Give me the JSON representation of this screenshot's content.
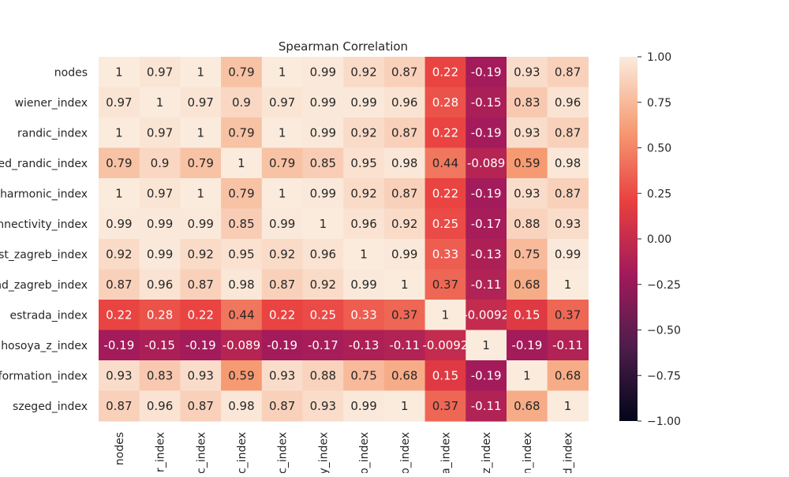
{
  "chart_data": {
    "type": "heatmap",
    "title": "Spearman Correlation",
    "row_labels": [
      "nodes",
      "wiener_index",
      "randic_index",
      "ed_randic_index",
      "harmonic_index",
      "onnectivity_index",
      "st_zagreb_index",
      "nd_zagreb_index",
      "estrada_index",
      "hosoya_z_index",
      "nformation_index",
      "szeged_index"
    ],
    "col_labels": [
      "nodes",
      "r_index",
      "c_index",
      "c_index",
      "c_index",
      "y_index",
      "o_index",
      "o_index",
      "a_index",
      "z_index",
      "n_index",
      "d_index"
    ],
    "value_labels": [
      [
        "1",
        "0.97",
        "1",
        "0.79",
        "1",
        "0.99",
        "0.92",
        "0.87",
        "0.22",
        "-0.19",
        "0.93",
        "0.87"
      ],
      [
        "0.97",
        "1",
        "0.97",
        "0.9",
        "0.97",
        "0.99",
        "0.99",
        "0.96",
        "0.28",
        "-0.15",
        "0.83",
        "0.96"
      ],
      [
        "1",
        "0.97",
        "1",
        "0.79",
        "1",
        "0.99",
        "0.92",
        "0.87",
        "0.22",
        "-0.19",
        "0.93",
        "0.87"
      ],
      [
        "0.79",
        "0.9",
        "0.79",
        "1",
        "0.79",
        "0.85",
        "0.95",
        "0.98",
        "0.44",
        "-0.089",
        "0.59",
        "0.98"
      ],
      [
        "1",
        "0.97",
        "1",
        "0.79",
        "1",
        "0.99",
        "0.92",
        "0.87",
        "0.22",
        "-0.19",
        "0.93",
        "0.87"
      ],
      [
        "0.99",
        "0.99",
        "0.99",
        "0.85",
        "0.99",
        "1",
        "0.96",
        "0.92",
        "0.25",
        "-0.17",
        "0.88",
        "0.93"
      ],
      [
        "0.92",
        "0.99",
        "0.92",
        "0.95",
        "0.92",
        "0.96",
        "1",
        "0.99",
        "0.33",
        "-0.13",
        "0.75",
        "0.99"
      ],
      [
        "0.87",
        "0.96",
        "0.87",
        "0.98",
        "0.87",
        "0.92",
        "0.99",
        "1",
        "0.37",
        "-0.11",
        "0.68",
        "1"
      ],
      [
        "0.22",
        "0.28",
        "0.22",
        "0.44",
        "0.22",
        "0.25",
        "0.33",
        "0.37",
        "1",
        "-0.0092",
        "0.15",
        "0.37"
      ],
      [
        "-0.19",
        "-0.15",
        "-0.19",
        "-0.089",
        "-0.19",
        "-0.17",
        "-0.13",
        "-0.11",
        "-0.0092",
        "1",
        "-0.19",
        "-0.11"
      ],
      [
        "0.93",
        "0.83",
        "0.93",
        "0.59",
        "0.93",
        "0.88",
        "0.75",
        "0.68",
        "0.15",
        "-0.19",
        "1",
        "0.68"
      ],
      [
        "0.87",
        "0.96",
        "0.87",
        "0.98",
        "0.87",
        "0.93",
        "0.99",
        "1",
        "0.37",
        "-0.11",
        "0.68",
        "1"
      ]
    ],
    "colorbar": {
      "min": -1,
      "max": 1,
      "tick_values": [
        -1,
        -0.75,
        -0.5,
        -0.25,
        0,
        0.25,
        0.5,
        0.75,
        1
      ],
      "tick_labels": [
        "−1.00",
        "−0.75",
        "−0.50",
        "−0.25",
        "0.00",
        "0.25",
        "0.50",
        "0.75",
        "1.00"
      ],
      "colormap": "rocket",
      "stops": [
        "#03051a",
        "#4c1d4b",
        "#a11a5b",
        "#e83f3f",
        "#f69c73",
        "#faebdd"
      ]
    },
    "grid": false,
    "legend": "colorbar-right"
  }
}
